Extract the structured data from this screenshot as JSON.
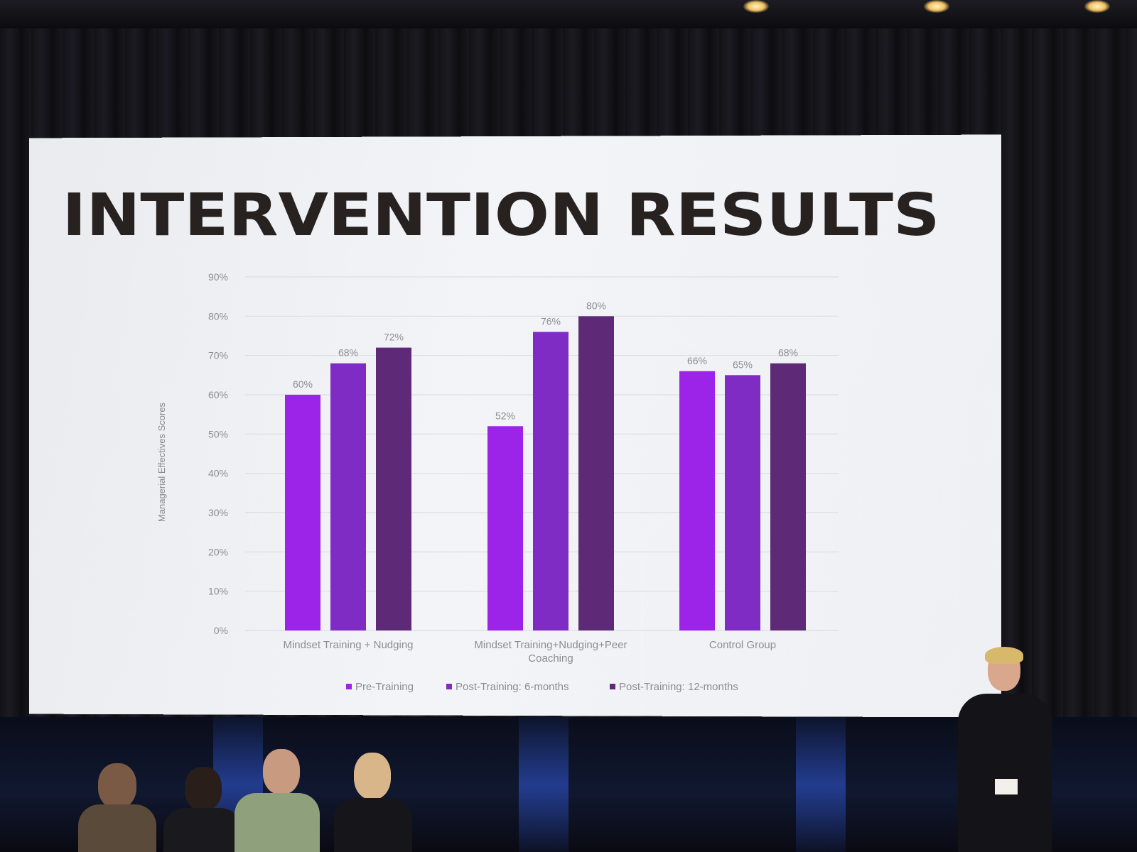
{
  "colors": {
    "pre_training": "#9c24e8",
    "post_6_months": "#7f2cc4",
    "post_12_months": "#5e2a78",
    "title_text": "#272220",
    "screen_bg": "#eef0f4"
  },
  "chart_data": {
    "type": "bar",
    "title": "INTERVENTION RESULTS",
    "ylabel": "Managerial Effectives Scores",
    "xlabel": "",
    "ylim": [
      0,
      0.9
    ],
    "y_ticks": [
      "0%",
      "10%",
      "20%",
      "30%",
      "40%",
      "50%",
      "60%",
      "70%",
      "80%",
      "90%"
    ],
    "categories": [
      [
        "Mindset Training + Nudging"
      ],
      [
        "Mindset Training+Nudging+Peer",
        "Coaching"
      ],
      [
        "Control Group"
      ]
    ],
    "series": [
      {
        "name": "Pre-Training",
        "values": [
          0.6,
          0.52,
          0.66
        ],
        "labels": [
          "60%",
          "52%",
          "66%"
        ],
        "color": "#9c24e8"
      },
      {
        "name": "Post-Training: 6-months",
        "values": [
          0.68,
          0.76,
          0.65
        ],
        "labels": [
          "68%",
          "76%",
          "65%"
        ],
        "color": "#7f2cc4"
      },
      {
        "name": "Post-Training: 12-months",
        "values": [
          0.72,
          0.8,
          0.68
        ],
        "labels": [
          "72%",
          "80%",
          "68%"
        ],
        "color": "#5e2a78"
      }
    ],
    "grid": true,
    "legend": "bottom"
  }
}
